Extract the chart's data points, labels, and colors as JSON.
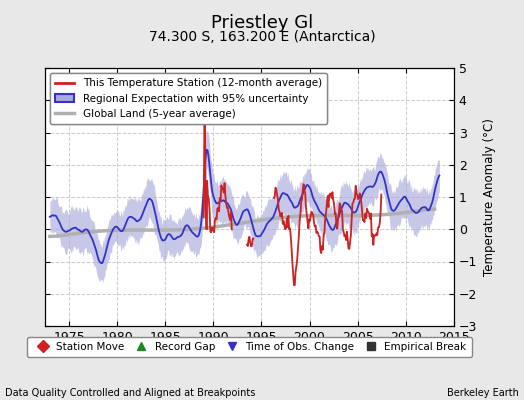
{
  "title": "Priestley Gl",
  "subtitle": "74.300 S, 163.200 E (Antarctica)",
  "ylabel": "Temperature Anomaly (°C)",
  "xlabel_left": "Data Quality Controlled and Aligned at Breakpoints",
  "xlabel_right": "Berkeley Earth",
  "xlim": [
    1972.5,
    2015
  ],
  "ylim": [
    -3,
    5
  ],
  "yticks": [
    -3,
    -2,
    -1,
    0,
    1,
    2,
    3,
    4,
    5
  ],
  "xticks": [
    1975,
    1980,
    1985,
    1990,
    1995,
    2000,
    2005,
    2010,
    2015
  ],
  "bg_color": "#e8e8e8",
  "plot_bg_color": "#ffffff",
  "grid_color": "#cccccc",
  "regional_color": "#3333cc",
  "regional_fill_color": "#aaaadd",
  "station_color": "#cc2222",
  "global_color": "#b0b0b0",
  "legend1_labels": [
    "This Temperature Station (12-month average)",
    "Regional Expectation with 95% uncertainty",
    "Global Land (5-year average)"
  ],
  "legend2_items": [
    {
      "label": "Station Move",
      "marker": "D",
      "color": "#cc2222"
    },
    {
      "label": "Record Gap",
      "marker": "^",
      "color": "#228822"
    },
    {
      "label": "Time of Obs. Change",
      "marker": "v",
      "color": "#3333cc"
    },
    {
      "label": "Empirical Break",
      "marker": "s",
      "color": "#333333"
    }
  ],
  "title_fontsize": 13,
  "subtitle_fontsize": 10,
  "tick_fontsize": 9,
  "label_fontsize": 8.5
}
